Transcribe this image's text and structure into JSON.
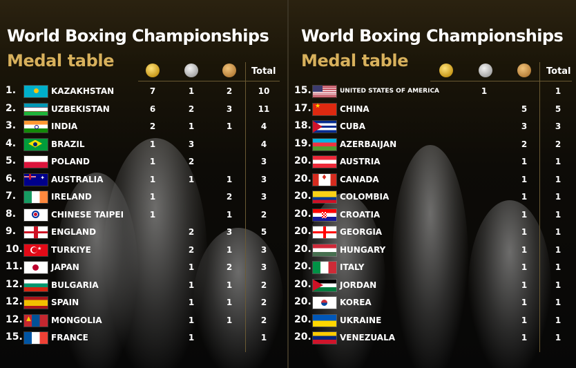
{
  "left": {
    "title": "World Boxing Championships",
    "subtitle": "Medal table",
    "total_header": "Total",
    "rows": [
      {
        "rank": "1.",
        "country": "KAZAKHSTAN",
        "gold": "7",
        "silver": "1",
        "bronze": "2",
        "total": "10",
        "flag": "kz"
      },
      {
        "rank": "2.",
        "country": "UZBEKISTAN",
        "gold": "6",
        "silver": "2",
        "bronze": "3",
        "total": "11",
        "flag": "uz"
      },
      {
        "rank": "3.",
        "country": "INDIA",
        "gold": "2",
        "silver": "1",
        "bronze": "1",
        "total": "4",
        "flag": "in"
      },
      {
        "rank": "4.",
        "country": "BRAZIL",
        "gold": "1",
        "silver": "3",
        "bronze": "",
        "total": "4",
        "flag": "br"
      },
      {
        "rank": "5.",
        "country": "POLAND",
        "gold": "1",
        "silver": "2",
        "bronze": "",
        "total": "3",
        "flag": "pl"
      },
      {
        "rank": "6.",
        "country": "AUSTRALIA",
        "gold": "1",
        "silver": "1",
        "bronze": "1",
        "total": "3",
        "flag": "au"
      },
      {
        "rank": "7.",
        "country": "IRELAND",
        "gold": "1",
        "silver": "",
        "bronze": "2",
        "total": "3",
        "flag": "ie"
      },
      {
        "rank": "8.",
        "country": "CHINESE TAIPEI",
        "gold": "1",
        "silver": "",
        "bronze": "1",
        "total": "2",
        "flag": "tpe"
      },
      {
        "rank": "9.",
        "country": "ENGLAND",
        "gold": "",
        "silver": "2",
        "bronze": "3",
        "total": "5",
        "flag": "en"
      },
      {
        "rank": "10.",
        "country": "TURKIYE",
        "gold": "",
        "silver": "2",
        "bronze": "1",
        "total": "3",
        "flag": "tr"
      },
      {
        "rank": "11.",
        "country": "JAPAN",
        "gold": "",
        "silver": "1",
        "bronze": "2",
        "total": "3",
        "flag": "jp"
      },
      {
        "rank": "12.",
        "country": "BULGARIA",
        "gold": "",
        "silver": "1",
        "bronze": "1",
        "total": "2",
        "flag": "bg"
      },
      {
        "rank": "12.",
        "country": "SPAIN",
        "gold": "",
        "silver": "1",
        "bronze": "1",
        "total": "2",
        "flag": "es"
      },
      {
        "rank": "12.",
        "country": "MONGOLIA",
        "gold": "",
        "silver": "1",
        "bronze": "1",
        "total": "2",
        "flag": "mn"
      },
      {
        "rank": "15.",
        "country": "FRANCE",
        "gold": "",
        "silver": "1",
        "bronze": "",
        "total": "1",
        "flag": "fr"
      }
    ]
  },
  "right": {
    "title": "World Boxing Championships",
    "subtitle": "Medal table",
    "total_header": "Total",
    "rows": [
      {
        "rank": "15.",
        "country": "UNITED STATES OF AMERICA",
        "gold": "",
        "silver": "1",
        "bronze": "",
        "total": "1",
        "flag": "us"
      },
      {
        "rank": "17.",
        "country": "CHINA",
        "gold": "",
        "silver": "",
        "bronze": "5",
        "total": "5",
        "flag": "cn"
      },
      {
        "rank": "18.",
        "country": "CUBA",
        "gold": "",
        "silver": "",
        "bronze": "3",
        "total": "3",
        "flag": "cu"
      },
      {
        "rank": "19.",
        "country": "AZERBAIJAN",
        "gold": "",
        "silver": "",
        "bronze": "2",
        "total": "2",
        "flag": "az"
      },
      {
        "rank": "20.",
        "country": "AUSTRIA",
        "gold": "",
        "silver": "",
        "bronze": "1",
        "total": "1",
        "flag": "at"
      },
      {
        "rank": "20.",
        "country": "CANADA",
        "gold": "",
        "silver": "",
        "bronze": "1",
        "total": "1",
        "flag": "ca"
      },
      {
        "rank": "20.",
        "country": "COLOMBIA",
        "gold": "",
        "silver": "",
        "bronze": "1",
        "total": "1",
        "flag": "co"
      },
      {
        "rank": "20.",
        "country": "CROATIA",
        "gold": "",
        "silver": "",
        "bronze": "1",
        "total": "1",
        "flag": "hr"
      },
      {
        "rank": "20.",
        "country": "GEORGIA",
        "gold": "",
        "silver": "",
        "bronze": "1",
        "total": "1",
        "flag": "ge"
      },
      {
        "rank": "20.",
        "country": "HUNGARY",
        "gold": "",
        "silver": "",
        "bronze": "1",
        "total": "1",
        "flag": "hu"
      },
      {
        "rank": "20.",
        "country": "ITALY",
        "gold": "",
        "silver": "",
        "bronze": "1",
        "total": "1",
        "flag": "it"
      },
      {
        "rank": "20.",
        "country": "JORDAN",
        "gold": "",
        "silver": "",
        "bronze": "1",
        "total": "1",
        "flag": "jo"
      },
      {
        "rank": "20.",
        "country": "KOREA",
        "gold": "",
        "silver": "",
        "bronze": "1",
        "total": "1",
        "flag": "kr"
      },
      {
        "rank": "20.",
        "country": "UKRAINE",
        "gold": "",
        "silver": "",
        "bronze": "1",
        "total": "1",
        "flag": "ua"
      },
      {
        "rank": "20.",
        "country": "VENEZUALA",
        "gold": "",
        "silver": "",
        "bronze": "1",
        "total": "1",
        "flag": "ve"
      }
    ]
  }
}
